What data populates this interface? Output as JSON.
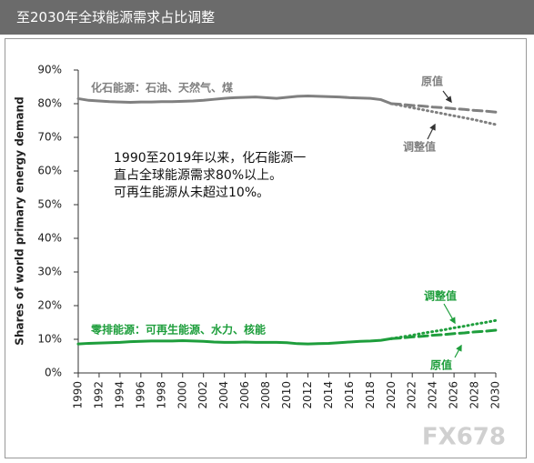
{
  "chart_data": {
    "type": "line",
    "title": "至2030年全球能源需求占比调整",
    "y_label": "Shares of world primary energy demand",
    "annotation": [
      "1990至2019年以来，化石能源一直占全球能源需求80%以上。",
      "可再生能源从未超过10%。"
    ],
    "watermark": "FX678",
    "x": [
      1990,
      1991,
      1992,
      1993,
      1994,
      1995,
      1996,
      1997,
      1998,
      1999,
      2000,
      2001,
      2002,
      2003,
      2004,
      2005,
      2006,
      2007,
      2008,
      2009,
      2010,
      2011,
      2012,
      2013,
      2014,
      2015,
      2016,
      2017,
      2018,
      2019,
      2020,
      2021,
      2022,
      2023,
      2024,
      2025,
      2026,
      2027,
      2028,
      2029,
      2030
    ],
    "xlim": [
      1990,
      2030
    ],
    "xticks": [
      1990,
      1992,
      1994,
      1996,
      1998,
      2000,
      2002,
      2004,
      2006,
      2008,
      2010,
      2012,
      2014,
      2016,
      2018,
      2020,
      2022,
      2024,
      2026,
      2028,
      2030
    ],
    "ylim": [
      0,
      90
    ],
    "yticks": [
      {
        "value": 0,
        "label": "0%"
      },
      {
        "value": 10,
        "label": "10%"
      },
      {
        "value": 20,
        "label": "20%"
      },
      {
        "value": 30,
        "label": "30%"
      },
      {
        "value": 40,
        "label": "40%"
      },
      {
        "value": 50,
        "label": "50%"
      },
      {
        "value": 60,
        "label": "60%"
      },
      {
        "value": 70,
        "label": "70%"
      },
      {
        "value": 80,
        "label": "80%"
      },
      {
        "value": 90,
        "label": "90%"
      }
    ],
    "series": [
      {
        "name": "化石能源：石油、天然气、煤",
        "color": "#808080",
        "style": "solid",
        "values": [
          81.5,
          81,
          80.8,
          80.6,
          80.5,
          80.4,
          80.5,
          80.5,
          80.6,
          80.6,
          80.7,
          80.8,
          81,
          81.3,
          81.6,
          81.8,
          81.9,
          82,
          81.8,
          81.6,
          81.9,
          82.2,
          82.3,
          82.2,
          82.1,
          82,
          81.8,
          81.7,
          81.6,
          81.2,
          80,
          null,
          null,
          null,
          null,
          null,
          null,
          null,
          null,
          null,
          null
        ]
      },
      {
        "name": "原值",
        "color": "#808080",
        "style": "dashed",
        "values": [
          null,
          null,
          null,
          null,
          null,
          null,
          null,
          null,
          null,
          null,
          null,
          null,
          null,
          null,
          null,
          null,
          null,
          null,
          null,
          null,
          null,
          null,
          null,
          null,
          null,
          null,
          null,
          null,
          null,
          null,
          80,
          79.8,
          79.5,
          79.3,
          79,
          78.8,
          78.5,
          78.3,
          78,
          77.8,
          77.5
        ]
      },
      {
        "name": "调整值",
        "color": "#808080",
        "style": "dotted",
        "values": [
          null,
          null,
          null,
          null,
          null,
          null,
          null,
          null,
          null,
          null,
          null,
          null,
          null,
          null,
          null,
          null,
          null,
          null,
          null,
          null,
          null,
          null,
          null,
          null,
          null,
          null,
          null,
          null,
          null,
          null,
          80,
          79.4,
          78.8,
          78.2,
          77.6,
          77,
          76.4,
          75.8,
          75.2,
          74.5,
          73.8
        ]
      },
      {
        "name": "零排能源：可再生能源、水力、核能",
        "color": "#1e9e3c",
        "style": "solid",
        "values": [
          8.6,
          8.8,
          8.9,
          9,
          9.1,
          9.3,
          9.4,
          9.5,
          9.5,
          9.5,
          9.6,
          9.5,
          9.4,
          9.2,
          9.1,
          9.1,
          9.2,
          9.1,
          9.1,
          9.1,
          9,
          8.7,
          8.6,
          8.7,
          8.8,
          9,
          9.2,
          9.4,
          9.5,
          9.7,
          10.2,
          null,
          null,
          null,
          null,
          null,
          null,
          null,
          null,
          null,
          null
        ]
      },
      {
        "name": "调整值",
        "color": "#1e9e3c",
        "style": "dotted",
        "values": [
          null,
          null,
          null,
          null,
          null,
          null,
          null,
          null,
          null,
          null,
          null,
          null,
          null,
          null,
          null,
          null,
          null,
          null,
          null,
          null,
          null,
          null,
          null,
          null,
          null,
          null,
          null,
          null,
          null,
          null,
          10.2,
          10.7,
          11.2,
          11.8,
          12.3,
          12.8,
          13.4,
          13.9,
          14.5,
          15,
          15.6
        ]
      },
      {
        "name": "原值",
        "color": "#1e9e3c",
        "style": "dashed",
        "values": [
          null,
          null,
          null,
          null,
          null,
          null,
          null,
          null,
          null,
          null,
          null,
          null,
          null,
          null,
          null,
          null,
          null,
          null,
          null,
          null,
          null,
          null,
          null,
          null,
          null,
          null,
          null,
          null,
          null,
          null,
          10.2,
          10.4,
          10.7,
          10.9,
          11.2,
          11.4,
          11.7,
          11.9,
          12.2,
          12.4,
          12.7
        ]
      }
    ]
  }
}
